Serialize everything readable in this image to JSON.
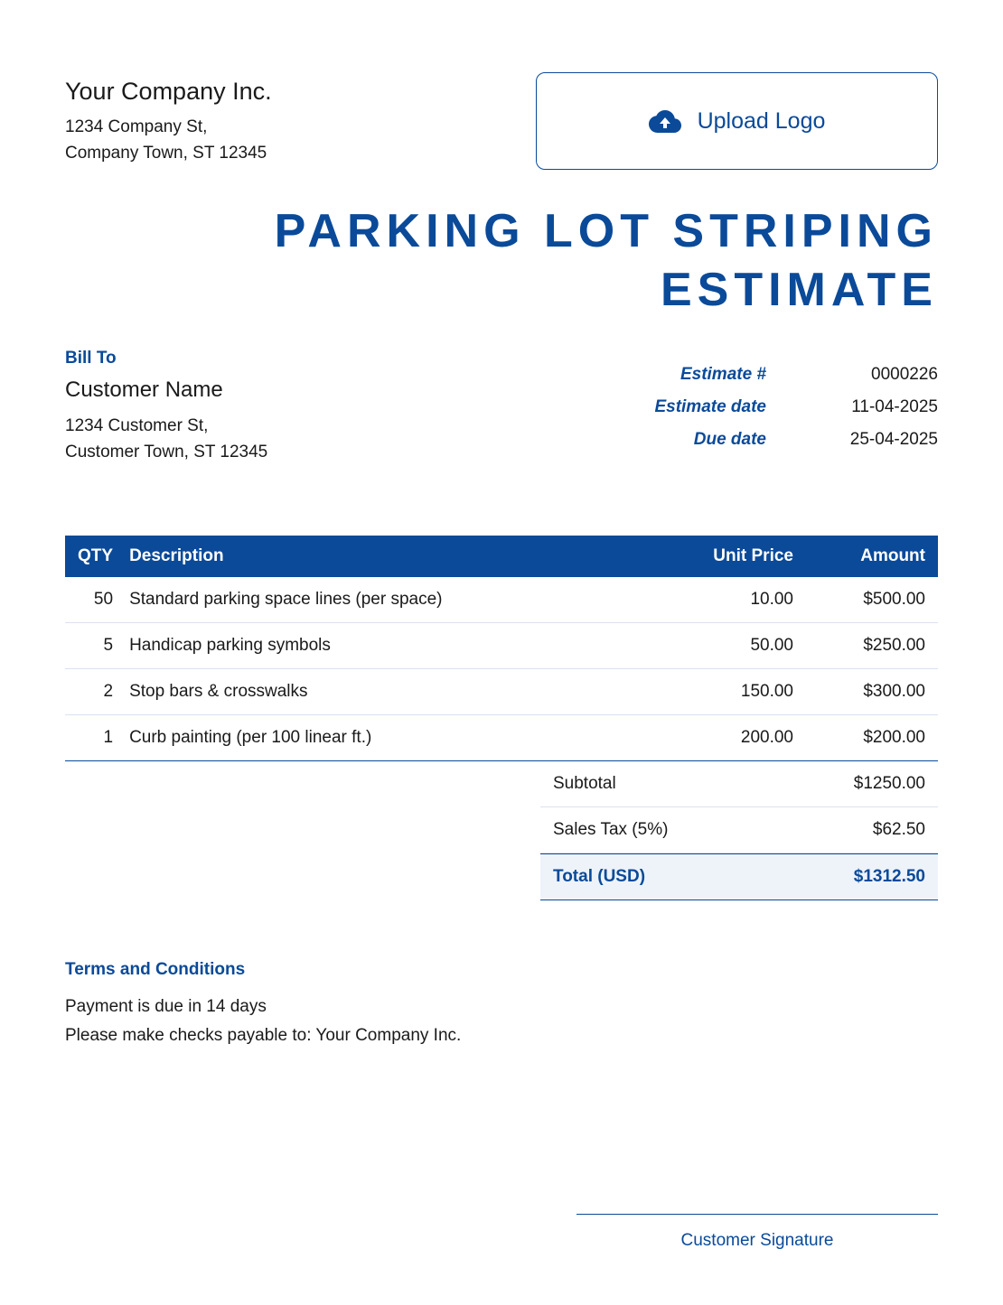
{
  "company": {
    "name": "Your Company Inc.",
    "addr1": "1234 Company St,",
    "addr2": "Company Town, ST 12345"
  },
  "upload": {
    "label": "Upload Logo"
  },
  "title": "PARKING LOT STRIPING ESTIMATE",
  "bill_to": {
    "label": "Bill To",
    "name": "Customer Name",
    "addr1": "1234 Customer St,",
    "addr2": "Customer Town, ST 12345"
  },
  "meta": {
    "estimate_num_label": "Estimate #",
    "estimate_num": "0000226",
    "estimate_date_label": "Estimate date",
    "estimate_date": "11-04-2025",
    "due_date_label": "Due date",
    "due_date": "25-04-2025"
  },
  "table": {
    "headers": {
      "qty": "QTY",
      "desc": "Description",
      "uprice": "Unit Price",
      "amt": "Amount"
    },
    "rows": [
      {
        "qty": "50",
        "desc": "Standard parking space lines (per space)",
        "uprice": "10.00",
        "amt": "$500.00"
      },
      {
        "qty": "5",
        "desc": "Handicap parking symbols",
        "uprice": "50.00",
        "amt": "$250.00"
      },
      {
        "qty": "2",
        "desc": "Stop bars & crosswalks",
        "uprice": "150.00",
        "amt": "$300.00"
      },
      {
        "qty": "1",
        "desc": "Curb painting (per 100 linear ft.)",
        "uprice": "200.00",
        "amt": "$200.00"
      }
    ]
  },
  "totals": {
    "subtotal_label": "Subtotal",
    "subtotal": "$1250.00",
    "tax_label": "Sales Tax (5%)",
    "tax": "$62.50",
    "grand_label": "Total (USD)",
    "grand": "$1312.50"
  },
  "terms": {
    "label": "Terms and Conditions",
    "line1": "Payment is due in 14 days",
    "line2": "Please make checks payable to: Your Company Inc."
  },
  "signature": {
    "label": "Customer Signature"
  },
  "colors": {
    "primary": "#0a4a99",
    "grand_bg": "#eef3fa",
    "row_border": "#d9e2ee"
  }
}
